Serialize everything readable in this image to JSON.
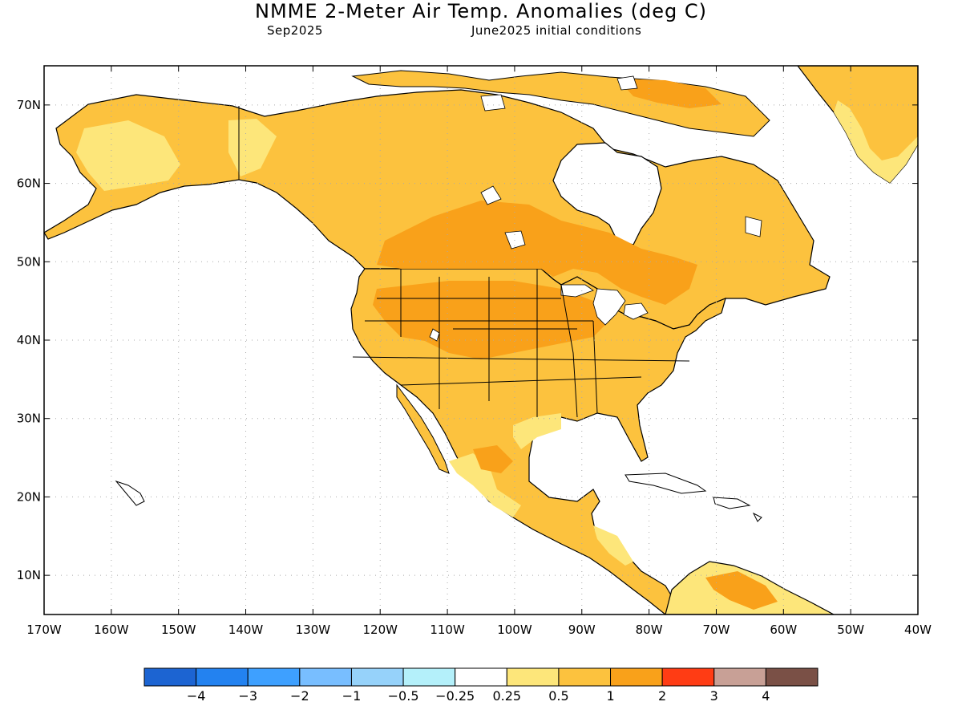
{
  "header": {
    "title": "NMME 2-Meter Air Temp. Anomalies (deg C)",
    "month": "Sep2025",
    "initial_conditions": "June2025 initial conditions"
  },
  "map": {
    "lon_labels": [
      "170W",
      "160W",
      "150W",
      "140W",
      "130W",
      "120W",
      "110W",
      "100W",
      "90W",
      "80W",
      "70W",
      "60W",
      "50W",
      "40W"
    ],
    "lat_labels": [
      "70N",
      "60N",
      "50N",
      "40N",
      "30N",
      "20N",
      "10N"
    ],
    "lon_range": [
      -170,
      -40
    ],
    "lat_range": [
      5,
      75
    ],
    "grid": "dotted"
  },
  "colorbar": {
    "colors": [
      "#1c64d2",
      "#2382f0",
      "#3ea0ff",
      "#78beff",
      "#96d2fa",
      "#b4f0fa",
      "#ffffff",
      "#fde67a",
      "#fcc23e",
      "#f9a11a",
      "#ff3c14",
      "#c8a096",
      "#7a5046"
    ],
    "labels": [
      "−4",
      "−3",
      "−2",
      "−1",
      "−0.5",
      "−0.25",
      "0.25",
      "0.5",
      "1",
      "2",
      "3",
      "4"
    ]
  },
  "legend_colors": {
    "light_yellow": "#fde67a",
    "light_orange": "#fcc23e",
    "orange": "#f9a11a",
    "ocean": "#ffffff"
  }
}
